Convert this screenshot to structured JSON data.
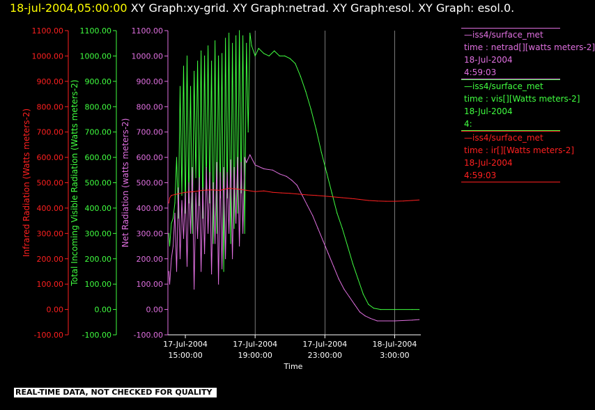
{
  "header": {
    "date": "18-jul-2004,05:00:00",
    "text": "XY Graph:xy-grid.  XY Graph:netrad.  XY Graph:esol.  XY Graph: esol.0."
  },
  "notice": "REAL-TIME DATA, NOT CHECKED FOR QUALITY",
  "chart_data": {
    "type": "line",
    "xlabel": "Time",
    "x_ticks": [
      {
        "t": 15,
        "line1": "17-Jul-2004",
        "line2": "15:00:00"
      },
      {
        "t": 19,
        "line1": "17-Jul-2004",
        "line2": "19:00:00"
      },
      {
        "t": 23,
        "line1": "17-Jul-2004",
        "line2": "23:00:00"
      },
      {
        "t": 27,
        "line1": "18-Jul-2004",
        "line2": "3:00:00"
      }
    ],
    "xlim": [
      14.0,
      28.5
    ],
    "grid_lines_x": [
      19,
      23,
      27
    ],
    "axes": [
      {
        "id": "ir",
        "label": "Infrared Radiation (Watts meters-2)",
        "color": "#ff2020",
        "ticks": [
          "-100.00",
          "0.00",
          "100.00",
          "200.00",
          "300.00",
          "400.00",
          "500.00",
          "600.00",
          "700.00",
          "800.00",
          "900.00",
          "1000.00",
          "1100.00"
        ]
      },
      {
        "id": "vis",
        "label": "Total Incoming Visible Radiation (Watts meters-2)",
        "color": "#40ff40",
        "ticks": [
          "-100.00",
          "0.00",
          "100.00",
          "200.00",
          "300.00",
          "400.00",
          "500.00",
          "600.00",
          "700.00",
          "800.00",
          "900.00",
          "1000.00",
          "1100.00"
        ]
      },
      {
        "id": "net",
        "label": "Net Radiation (watts meters-2)",
        "color": "#e070e0",
        "ticks": [
          "-100.00",
          "0.00",
          "100.00",
          "200.00",
          "300.00",
          "400.00",
          "500.00",
          "600.00",
          "700.00",
          "800.00",
          "900.00",
          "1000.00",
          "1100.00"
        ]
      }
    ],
    "ylim": [
      -100,
      1100
    ],
    "series": [
      {
        "name": "vis",
        "color": "#40ff40",
        "points": [
          [
            14.05,
            300
          ],
          [
            14.1,
            250
          ],
          [
            14.2,
            340
          ],
          [
            14.3,
            360
          ],
          [
            14.4,
            420
          ],
          [
            14.5,
            600
          ],
          [
            14.6,
            360
          ],
          [
            14.7,
            880
          ],
          [
            14.8,
            450
          ],
          [
            14.9,
            960
          ],
          [
            15.0,
            380
          ],
          [
            15.1,
            1000
          ],
          [
            15.2,
            420
          ],
          [
            15.3,
            880
          ],
          [
            15.4,
            300
          ],
          [
            15.5,
            940
          ],
          [
            15.6,
            520
          ],
          [
            15.7,
            980
          ],
          [
            15.8,
            410
          ],
          [
            15.9,
            1020
          ],
          [
            16.0,
            360
          ],
          [
            16.1,
            1000
          ],
          [
            16.2,
            470
          ],
          [
            16.3,
            1040
          ],
          [
            16.4,
            420
          ],
          [
            16.5,
            980
          ],
          [
            16.6,
            260
          ],
          [
            16.7,
            1060
          ],
          [
            16.8,
            300
          ],
          [
            16.9,
            1000
          ],
          [
            17.0,
            440
          ],
          [
            17.1,
            1010
          ],
          [
            17.2,
            150
          ],
          [
            17.3,
            1070
          ],
          [
            17.4,
            440
          ],
          [
            17.5,
            1090
          ],
          [
            17.6,
            260
          ],
          [
            17.7,
            1050
          ],
          [
            17.8,
            320
          ],
          [
            17.9,
            1080
          ],
          [
            18.0,
            380
          ],
          [
            18.1,
            1100
          ],
          [
            18.2,
            460
          ],
          [
            18.3,
            1080
          ],
          [
            18.4,
            300
          ],
          [
            18.5,
            1050
          ],
          [
            18.6,
            700
          ],
          [
            18.7,
            1090
          ],
          [
            18.8,
            1040
          ],
          [
            19.0,
            1000
          ],
          [
            19.2,
            1030
          ],
          [
            19.5,
            1010
          ],
          [
            19.8,
            1000
          ],
          [
            20.1,
            1020
          ],
          [
            20.4,
            1000
          ],
          [
            20.7,
            1000
          ],
          [
            21.0,
            990
          ],
          [
            21.3,
            970
          ],
          [
            21.6,
            920
          ],
          [
            21.9,
            860
          ],
          [
            22.2,
            790
          ],
          [
            22.5,
            710
          ],
          [
            22.8,
            620
          ],
          [
            23.1,
            540
          ],
          [
            23.4,
            460
          ],
          [
            23.7,
            380
          ],
          [
            24.0,
            320
          ],
          [
            24.3,
            250
          ],
          [
            24.6,
            180
          ],
          [
            24.9,
            120
          ],
          [
            25.2,
            60
          ],
          [
            25.5,
            20
          ],
          [
            25.8,
            5
          ],
          [
            26.2,
            0
          ],
          [
            27.0,
            0
          ],
          [
            28.0,
            0
          ],
          [
            28.4,
            0
          ]
        ]
      },
      {
        "name": "net",
        "color": "#e070e0",
        "points": [
          [
            14.05,
            150
          ],
          [
            14.1,
            100
          ],
          [
            14.2,
            200
          ],
          [
            14.3,
            250
          ],
          [
            14.4,
            380
          ],
          [
            14.5,
            150
          ],
          [
            14.6,
            480
          ],
          [
            14.7,
            200
          ],
          [
            14.8,
            430
          ],
          [
            14.9,
            280
          ],
          [
            15.0,
            460
          ],
          [
            15.1,
            170
          ],
          [
            15.2,
            500
          ],
          [
            15.3,
            300
          ],
          [
            15.4,
            560
          ],
          [
            15.5,
            80
          ],
          [
            15.6,
            460
          ],
          [
            15.7,
            280
          ],
          [
            15.8,
            520
          ],
          [
            15.9,
            150
          ],
          [
            16.0,
            480
          ],
          [
            16.1,
            220
          ],
          [
            16.2,
            560
          ],
          [
            16.3,
            300
          ],
          [
            16.4,
            540
          ],
          [
            16.5,
            140
          ],
          [
            16.6,
            500
          ],
          [
            16.7,
            260
          ],
          [
            16.8,
            580
          ],
          [
            16.9,
            100
          ],
          [
            17.0,
            540
          ],
          [
            17.1,
            160
          ],
          [
            17.2,
            560
          ],
          [
            17.3,
            200
          ],
          [
            17.4,
            540
          ],
          [
            17.5,
            300
          ],
          [
            17.6,
            590
          ],
          [
            17.7,
            200
          ],
          [
            17.8,
            560
          ],
          [
            17.9,
            340
          ],
          [
            18.0,
            600
          ],
          [
            18.1,
            250
          ],
          [
            18.2,
            580
          ],
          [
            18.3,
            300
          ],
          [
            18.4,
            600
          ],
          [
            18.5,
            580
          ],
          [
            18.7,
            610
          ],
          [
            19.0,
            570
          ],
          [
            19.5,
            555
          ],
          [
            20.0,
            550
          ],
          [
            20.4,
            535
          ],
          [
            20.8,
            525
          ],
          [
            21.1,
            510
          ],
          [
            21.4,
            490
          ],
          [
            21.7,
            450
          ],
          [
            22.0,
            410
          ],
          [
            22.3,
            370
          ],
          [
            22.6,
            320
          ],
          [
            22.9,
            270
          ],
          [
            23.2,
            220
          ],
          [
            23.5,
            170
          ],
          [
            23.8,
            120
          ],
          [
            24.1,
            80
          ],
          [
            24.4,
            50
          ],
          [
            24.7,
            20
          ],
          [
            25.0,
            -10
          ],
          [
            25.3,
            -25
          ],
          [
            25.6,
            -35
          ],
          [
            26.0,
            -45
          ],
          [
            27.0,
            -45
          ],
          [
            28.0,
            -42
          ],
          [
            28.4,
            -40
          ]
        ]
      },
      {
        "name": "ir",
        "color": "#ff2020",
        "points": [
          [
            14.05,
            420
          ],
          [
            14.1,
            440
          ],
          [
            14.2,
            450
          ],
          [
            14.5,
            455
          ],
          [
            15.0,
            462
          ],
          [
            15.5,
            465
          ],
          [
            16.0,
            470
          ],
          [
            16.5,
            472
          ],
          [
            17.0,
            470
          ],
          [
            17.5,
            478
          ],
          [
            18.0,
            475
          ],
          [
            18.5,
            470
          ],
          [
            19.0,
            465
          ],
          [
            19.5,
            468
          ],
          [
            20.0,
            462
          ],
          [
            20.5,
            460
          ],
          [
            21.0,
            458
          ],
          [
            21.5,
            455
          ],
          [
            22.0,
            452
          ],
          [
            22.5,
            450
          ],
          [
            23.0,
            447
          ],
          [
            23.5,
            444
          ],
          [
            24.0,
            441
          ],
          [
            24.5,
            438
          ],
          [
            25.0,
            434
          ],
          [
            25.5,
            430
          ],
          [
            26.0,
            428
          ],
          [
            26.5,
            427
          ],
          [
            27.0,
            427
          ],
          [
            27.5,
            428
          ],
          [
            28.0,
            430
          ],
          [
            28.4,
            432
          ]
        ]
      }
    ]
  },
  "legend": [
    {
      "color": "#e070e0",
      "lines": [
        "—iss4/surface_met",
        "time : netrad[][watts meters-2]",
        "18-Jul-2004",
        "4:59:03"
      ]
    },
    {
      "color": "#40ff40",
      "lines": [
        "—iss4/surface_met",
        "time : vis[][Watts meters-2]",
        "18-Jul-2004",
        "4:"
      ]
    },
    {
      "color": "#ff2020",
      "lines": [
        "—iss4/surface_met",
        "time : ir[][Watts meters-2]",
        "18-Jul-2004",
        "4:59:03"
      ]
    }
  ]
}
